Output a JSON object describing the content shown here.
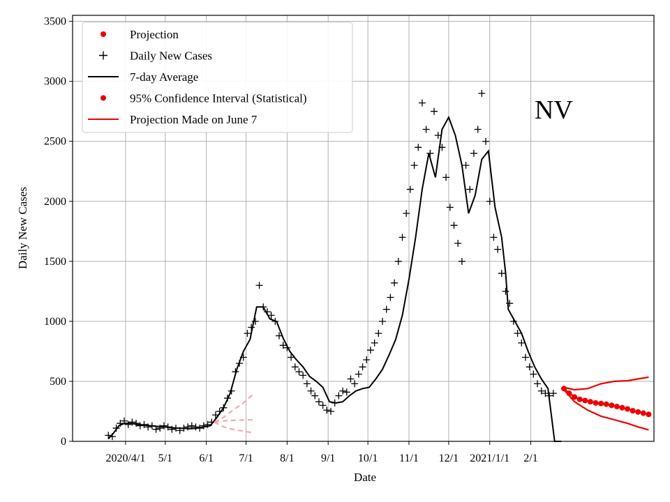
{
  "chart_data": {
    "type": "line",
    "title": "",
    "annotation": "NV",
    "xlabel": "Date",
    "ylabel": "Daily New Cases",
    "ylim": [
      0,
      3550
    ],
    "yticks": [
      0,
      500,
      1000,
      1500,
      2000,
      2500,
      3000,
      3500
    ],
    "x_unit": "days since 2020-03-01",
    "xlim": [
      -9,
      430
    ],
    "xticks": [
      {
        "day": 31,
        "label": "2020/4/1"
      },
      {
        "day": 61,
        "label": "5/1"
      },
      {
        "day": 92,
        "label": "6/1"
      },
      {
        "day": 122,
        "label": "7/1"
      },
      {
        "day": 153,
        "label": "8/1"
      },
      {
        "day": 184,
        "label": "9/1"
      },
      {
        "day": 214,
        "label": "10/1"
      },
      {
        "day": 245,
        "label": "11/1"
      },
      {
        "day": 275,
        "label": "12/1"
      },
      {
        "day": 306,
        "label": "2021/1/1"
      },
      {
        "day": 337,
        "label": "2/1"
      }
    ],
    "legend": {
      "position": "upper-left",
      "entries": [
        {
          "label": "Projection",
          "style": "red-dot"
        },
        {
          "label": "Daily New Cases",
          "style": "black-plus"
        },
        {
          "label": "7-day Average",
          "style": "black-line"
        },
        {
          "label": "95% Confidence Interval (Statistical)",
          "style": "red-dot"
        },
        {
          "label": "Projection Made on June 7",
          "style": "red-line"
        }
      ]
    },
    "series": [
      {
        "name": "7-day Average",
        "color": "#000000",
        "x": [
          18,
          22,
          26,
          30,
          35,
          40,
          45,
          50,
          55,
          60,
          65,
          70,
          75,
          80,
          85,
          90,
          95,
          100,
          105,
          110,
          115,
          120,
          125,
          130,
          135,
          140,
          145,
          150,
          155,
          160,
          165,
          170,
          175,
          180,
          185,
          190,
          195,
          200,
          205,
          210,
          215,
          220,
          225,
          230,
          235,
          240,
          245,
          250,
          255,
          260,
          265,
          270,
          275,
          280,
          285,
          290,
          295,
          300,
          305,
          310,
          315,
          318,
          320,
          325,
          330,
          335,
          340,
          345,
          350,
          355,
          360
        ],
        "values": [
          20,
          70,
          130,
          150,
          150,
          140,
          135,
          130,
          125,
          120,
          115,
          110,
          108,
          105,
          110,
          120,
          130,
          200,
          280,
          400,
          600,
          750,
          850,
          1120,
          1120,
          1020,
          1000,
          860,
          750,
          680,
          620,
          540,
          500,
          450,
          330,
          320,
          330,
          380,
          420,
          440,
          450,
          520,
          600,
          720,
          850,
          1050,
          1350,
          1700,
          2100,
          2400,
          2200,
          2600,
          2700,
          2550,
          2300,
          1900,
          2050,
          2350,
          2420,
          1950,
          1700,
          1400,
          1100,
          1000,
          900,
          750,
          620,
          520,
          440,
          0,
          0
        ]
      },
      {
        "name": "Daily New Cases",
        "color": "#000000",
        "x": [
          18,
          21,
          24,
          27,
          30,
          33,
          36,
          39,
          42,
          45,
          48,
          51,
          54,
          57,
          60,
          63,
          66,
          69,
          72,
          75,
          78,
          81,
          84,
          87,
          90,
          93,
          96,
          99,
          102,
          105,
          108,
          111,
          114,
          117,
          120,
          123,
          126,
          129,
          132,
          135,
          138,
          141,
          144,
          147,
          150,
          153,
          156,
          159,
          162,
          165,
          168,
          171,
          174,
          177,
          180,
          183,
          186,
          189,
          192,
          195,
          198,
          201,
          204,
          207,
          210,
          213,
          216,
          219,
          222,
          225,
          228,
          231,
          234,
          237,
          240,
          243,
          246,
          249,
          252,
          255,
          258,
          261,
          264,
          267,
          270,
          273,
          276,
          279,
          282,
          285,
          288,
          291,
          294,
          297,
          300,
          303,
          306,
          309,
          312,
          315,
          318,
          321,
          324,
          327,
          330,
          333,
          336,
          339,
          342,
          345,
          348,
          351,
          354
        ],
        "values": [
          50,
          40,
          110,
          150,
          170,
          140,
          160,
          150,
          130,
          140,
          120,
          130,
          100,
          110,
          130,
          120,
          100,
          110,
          90,
          110,
          120,
          130,
          120,
          110,
          130,
          140,
          160,
          220,
          250,
          280,
          360,
          420,
          580,
          650,
          700,
          900,
          950,
          1000,
          1300,
          1120,
          1080,
          1050,
          1000,
          880,
          800,
          780,
          700,
          620,
          580,
          550,
          480,
          420,
          380,
          330,
          300,
          260,
          250,
          320,
          380,
          420,
          410,
          520,
          480,
          560,
          620,
          680,
          760,
          820,
          900,
          1000,
          1100,
          1200,
          1320,
          1500,
          1700,
          1900,
          2100,
          2300,
          2450,
          2820,
          2600,
          2400,
          2750,
          2550,
          2450,
          2200,
          1950,
          1800,
          1650,
          1500,
          2300,
          2100,
          2400,
          2600,
          2900,
          2500,
          2000,
          1700,
          1600,
          1400,
          1250,
          1150,
          1000,
          900,
          820,
          700,
          620,
          560,
          480,
          420,
          400,
          380,
          400
        ]
      },
      {
        "name": "Projection",
        "color": "#ee0000",
        "x": [
          362,
          366,
          370,
          374,
          378,
          382,
          386,
          390,
          394,
          398,
          402,
          406,
          410,
          414,
          418,
          422,
          426
        ],
        "values": [
          440,
          400,
          370,
          350,
          340,
          330,
          320,
          315,
          310,
          300,
          290,
          280,
          270,
          255,
          245,
          235,
          225
        ]
      },
      {
        "name": "95% CI upper",
        "color": "#ee0000",
        "x": [
          362,
          370,
          380,
          390,
          400,
          410,
          418,
          426
        ],
        "values": [
          450,
          430,
          440,
          480,
          500,
          505,
          520,
          535
        ]
      },
      {
        "name": "95% CI lower",
        "color": "#ee0000",
        "x": [
          362,
          370,
          380,
          390,
          400,
          410,
          418,
          426
        ],
        "values": [
          430,
          330,
          260,
          210,
          180,
          150,
          120,
          95
        ]
      },
      {
        "name": "Projection Made on June 7",
        "color": "#f4a9a9",
        "dashed": true,
        "branches": [
          {
            "x": [
              98,
              105,
              112,
              120,
              128
            ],
            "values": [
              160,
              200,
              260,
              320,
              400
            ]
          },
          {
            "x": [
              98,
              105,
              112,
              120,
              128
            ],
            "values": [
              160,
              170,
              175,
              178,
              180
            ]
          },
          {
            "x": [
              98,
              105,
              112,
              120,
              128
            ],
            "values": [
              160,
              120,
              100,
              85,
              70
            ]
          }
        ]
      }
    ]
  }
}
